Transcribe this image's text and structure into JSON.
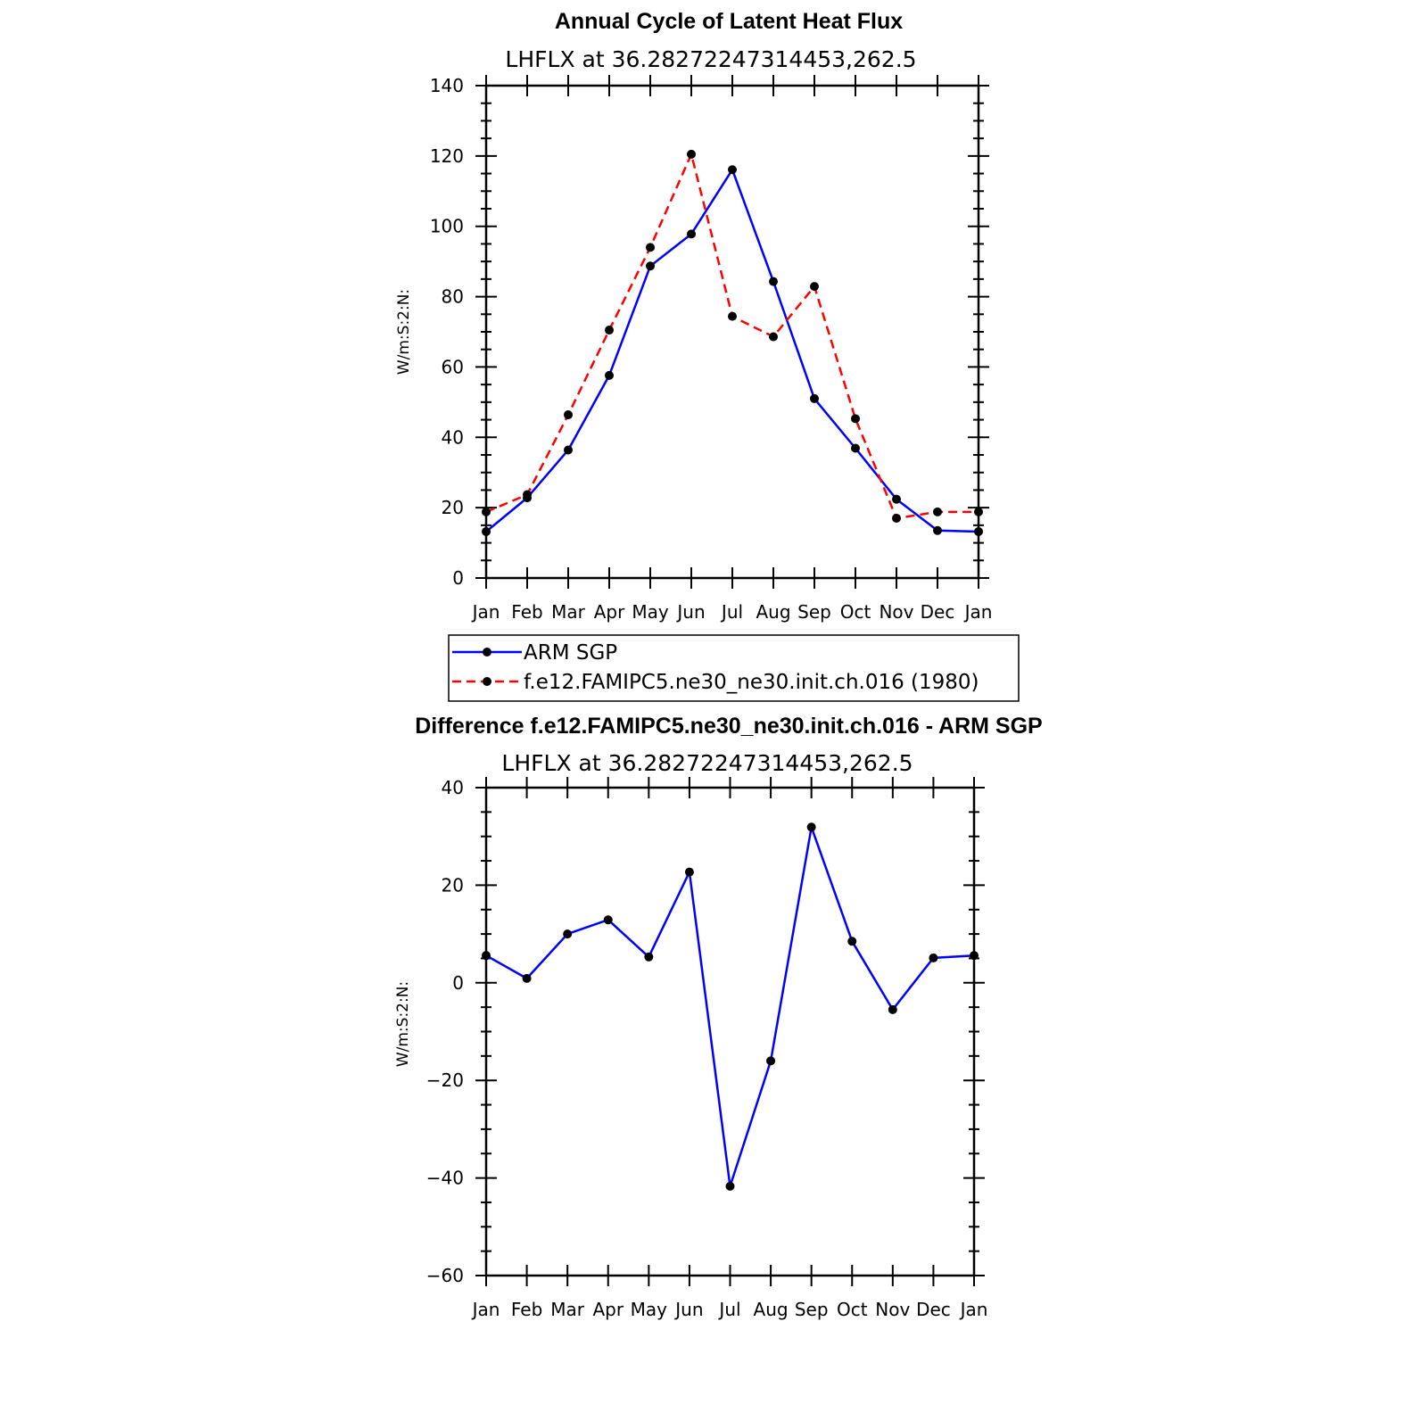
{
  "chart_data": [
    {
      "type": "line",
      "title": "Annual Cycle of Latent Heat Flux",
      "subtitle": "LHFLX at 36.28272247314453,262.5",
      "ylabel": "W/m:S:2:N:",
      "xlabel": "",
      "categories": [
        "Jan",
        "Feb",
        "Mar",
        "Apr",
        "May",
        "Jun",
        "Jul",
        "Aug",
        "Sep",
        "Oct",
        "Nov",
        "Dec",
        "Jan"
      ],
      "ylim": [
        0,
        140
      ],
      "yticks": [
        0,
        20,
        40,
        60,
        80,
        100,
        120,
        140
      ],
      "ytick_labels": [
        "0",
        "20",
        "40",
        "60",
        "80",
        "100",
        "120",
        "140"
      ],
      "grid": false,
      "legend": "below",
      "series": [
        {
          "name": "ARM SGP",
          "color": "#0000ff",
          "dash": "solid",
          "values": [
            13.2,
            22.8,
            36.4,
            57.6,
            88.7,
            97.8,
            116.1,
            84.3,
            51.0,
            36.9,
            22.4,
            13.5,
            13.2
          ]
        },
        {
          "name": "f.e12.FAMIPC5.ne30_ne30.init.ch.016 (1980)",
          "color": "#ff0000",
          "dash": "dashed",
          "values": [
            18.8,
            23.7,
            46.4,
            70.5,
            94.0,
            120.5,
            74.4,
            68.6,
            82.9,
            45.3,
            17.0,
            18.8,
            18.8
          ]
        }
      ]
    },
    {
      "type": "line",
      "title": "Difference f.e12.FAMIPC5.ne30_ne30.init.ch.016 - ARM SGP",
      "subtitle": "LHFLX at 36.28272247314453,262.5",
      "ylabel": "W/m:S:2:N:",
      "xlabel": "",
      "categories": [
        "Jan",
        "Feb",
        "Mar",
        "Apr",
        "May",
        "Jun",
        "Jul",
        "Aug",
        "Sep",
        "Oct",
        "Nov",
        "Dec",
        "Jan"
      ],
      "ylim": [
        -60,
        40
      ],
      "yticks": [
        -60,
        -40,
        -20,
        0,
        20,
        40
      ],
      "ytick_labels": [
        "−60",
        "−40",
        "−20",
        "0",
        "20",
        "40"
      ],
      "grid": false,
      "series": [
        {
          "color": "#0000ff",
          "dash": "solid",
          "values": [
            5.6,
            0.9,
            10.0,
            12.9,
            5.3,
            22.7,
            -41.7,
            -16.0,
            31.9,
            8.5,
            -5.5,
            5.1,
            5.6
          ]
        }
      ]
    }
  ]
}
